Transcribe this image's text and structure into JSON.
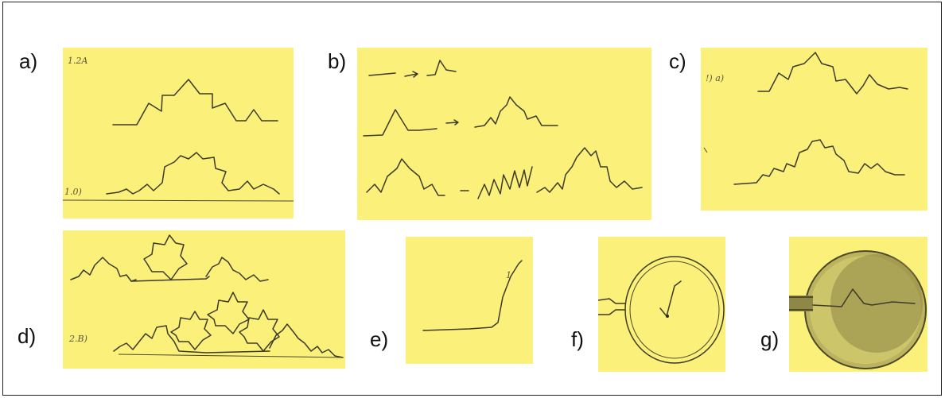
{
  "labels": {
    "a": "a)",
    "b": "b)",
    "c": "c)",
    "d": "d)",
    "e": "e)",
    "f": "f)",
    "g": "g)"
  },
  "handwriting": {
    "a_top": "1.2A",
    "a_bottom": "1.0)",
    "c_top": "!) a)",
    "d_left": "2.B)",
    "e_mark": "1"
  },
  "colors": {
    "paper": "#fbf079",
    "ink": "#3c3a28"
  }
}
